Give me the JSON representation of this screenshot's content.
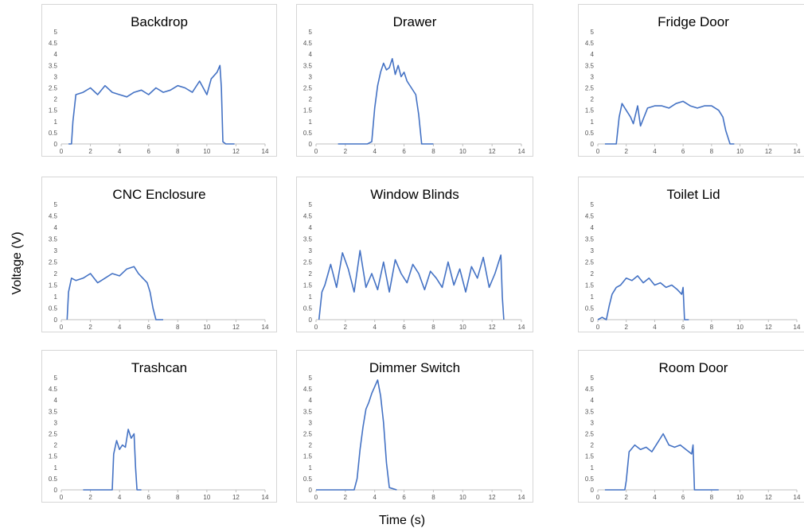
{
  "figure": {
    "ylabel": "Voltage (V)",
    "xlabel": "Time (s)",
    "line_color": "#4472C4"
  },
  "chart_data": [
    {
      "type": "line",
      "title": "Backdrop",
      "xlim": [
        0,
        14
      ],
      "ylim": [
        0,
        5
      ],
      "xticks": [
        0,
        2,
        4,
        6,
        8,
        10,
        12,
        14
      ],
      "yticks": [
        0,
        0.5,
        1,
        1.5,
        2,
        2.5,
        3,
        3.5,
        4,
        4.5,
        5
      ],
      "grid": false,
      "series": [
        {
          "x": [
            0.5,
            0.7,
            0.8,
            1.0,
            1.5,
            2,
            2.5,
            3,
            3.5,
            4,
            4.5,
            5,
            5.5,
            6,
            6.5,
            7,
            7.5,
            8,
            8.5,
            9,
            9.5,
            10,
            10.3,
            10.7,
            10.9,
            11.0,
            11.1,
            11.3,
            11.6,
            11.9
          ],
          "values": [
            0,
            0,
            1.0,
            2.2,
            2.3,
            2.5,
            2.2,
            2.6,
            2.3,
            2.2,
            2.1,
            2.3,
            2.4,
            2.2,
            2.5,
            2.3,
            2.4,
            2.6,
            2.5,
            2.3,
            2.8,
            2.2,
            2.9,
            3.2,
            3.5,
            2.5,
            0.1,
            0,
            0,
            0
          ]
        }
      ]
    },
    {
      "type": "line",
      "title": "Drawer",
      "xlim": [
        0,
        14
      ],
      "ylim": [
        0,
        5
      ],
      "xticks": [
        0,
        2,
        4,
        6,
        8,
        10,
        12,
        14
      ],
      "yticks": [
        0,
        0.5,
        1,
        1.5,
        2,
        2.5,
        3,
        3.5,
        4,
        4.5,
        5
      ],
      "grid": false,
      "series": [
        {
          "x": [
            1.5,
            2.0,
            2.8,
            3.5,
            3.8,
            4.0,
            4.2,
            4.4,
            4.6,
            4.8,
            5.0,
            5.2,
            5.4,
            5.6,
            5.8,
            6.0,
            6.2,
            6.5,
            6.8,
            7.0,
            7.2,
            7.5,
            8.0
          ],
          "values": [
            0,
            0,
            0,
            0,
            0.1,
            1.6,
            2.6,
            3.2,
            3.6,
            3.3,
            3.4,
            3.8,
            3.1,
            3.5,
            3.0,
            3.2,
            2.8,
            2.5,
            2.2,
            1.3,
            0,
            0,
            0
          ]
        }
      ]
    },
    {
      "type": "line",
      "title": "Fridge Door",
      "xlim": [
        0,
        14
      ],
      "ylim": [
        0,
        5
      ],
      "xticks": [
        0,
        2,
        4,
        6,
        8,
        10,
        12,
        14
      ],
      "yticks": [
        0,
        0.5,
        1,
        1.5,
        2,
        2.5,
        3,
        3.5,
        4,
        4.5,
        5
      ],
      "grid": false,
      "series": [
        {
          "x": [
            0.5,
            1.0,
            1.3,
            1.5,
            1.7,
            2.0,
            2.3,
            2.5,
            2.8,
            3.0,
            3.5,
            4.0,
            4.5,
            5.0,
            5.5,
            6.0,
            6.5,
            7.0,
            7.5,
            8.0,
            8.5,
            8.8,
            9.0,
            9.3,
            9.6
          ],
          "values": [
            0,
            0,
            0,
            1.2,
            1.8,
            1.5,
            1.2,
            0.9,
            1.7,
            0.8,
            1.6,
            1.7,
            1.7,
            1.6,
            1.8,
            1.9,
            1.7,
            1.6,
            1.7,
            1.7,
            1.5,
            1.2,
            0.6,
            0,
            0
          ]
        }
      ]
    },
    {
      "type": "line",
      "title": "CNC Enclosure",
      "xlim": [
        0,
        14
      ],
      "ylim": [
        0,
        5
      ],
      "xticks": [
        0,
        2,
        4,
        6,
        8,
        10,
        12,
        14
      ],
      "yticks": [
        0,
        0.5,
        1,
        1.5,
        2,
        2.5,
        3,
        3.5,
        4,
        4.5,
        5
      ],
      "grid": false,
      "series": [
        {
          "x": [
            0.4,
            0.5,
            0.7,
            1.0,
            1.5,
            2.0,
            2.5,
            3.0,
            3.5,
            4.0,
            4.5,
            5.0,
            5.3,
            5.6,
            5.9,
            6.1,
            6.3,
            6.5,
            7.0
          ],
          "values": [
            0,
            1.2,
            1.8,
            1.7,
            1.8,
            2.0,
            1.6,
            1.8,
            2.0,
            1.9,
            2.2,
            2.3,
            2.0,
            1.8,
            1.6,
            1.2,
            0.5,
            0,
            0
          ]
        }
      ]
    },
    {
      "type": "line",
      "title": "Window Blinds",
      "xlim": [
        0,
        14
      ],
      "ylim": [
        0,
        5
      ],
      "xticks": [
        0,
        2,
        4,
        6,
        8,
        10,
        12,
        14
      ],
      "yticks": [
        0,
        0.5,
        1,
        1.5,
        2,
        2.5,
        3,
        3.5,
        4,
        4.5,
        5
      ],
      "grid": false,
      "series": [
        {
          "x": [
            0.2,
            0.4,
            0.6,
            1.0,
            1.4,
            1.8,
            2.2,
            2.6,
            3.0,
            3.4,
            3.8,
            4.2,
            4.6,
            5.0,
            5.4,
            5.8,
            6.2,
            6.6,
            7.0,
            7.4,
            7.8,
            8.2,
            8.6,
            9.0,
            9.4,
            9.8,
            10.2,
            10.6,
            11.0,
            11.4,
            11.8,
            12.2,
            12.6,
            12.7,
            12.8
          ],
          "values": [
            0,
            1.2,
            1.5,
            2.4,
            1.4,
            2.9,
            2.2,
            1.2,
            3.0,
            1.4,
            2.0,
            1.3,
            2.5,
            1.2,
            2.6,
            2.0,
            1.6,
            2.4,
            2.0,
            1.3,
            2.1,
            1.8,
            1.4,
            2.5,
            1.5,
            2.2,
            1.2,
            2.3,
            1.8,
            2.7,
            1.4,
            2.0,
            2.8,
            1.0,
            0
          ]
        }
      ]
    },
    {
      "type": "line",
      "title": "Toilet Lid",
      "xlim": [
        0,
        14
      ],
      "ylim": [
        0,
        5
      ],
      "xticks": [
        0,
        2,
        4,
        6,
        8,
        10,
        12,
        14
      ],
      "yticks": [
        0,
        0.5,
        1,
        1.5,
        2,
        2.5,
        3,
        3.5,
        4,
        4.5,
        5
      ],
      "grid": false,
      "series": [
        {
          "x": [
            0,
            0.3,
            0.6,
            0.8,
            1.0,
            1.3,
            1.6,
            2.0,
            2.4,
            2.8,
            3.2,
            3.6,
            4.0,
            4.4,
            4.8,
            5.2,
            5.6,
            5.9,
            6.0,
            6.1,
            6.4
          ],
          "values": [
            0,
            0.1,
            0,
            0.6,
            1.1,
            1.4,
            1.5,
            1.8,
            1.7,
            1.9,
            1.6,
            1.8,
            1.5,
            1.6,
            1.4,
            1.5,
            1.3,
            1.1,
            1.4,
            0,
            0
          ]
        }
      ]
    },
    {
      "type": "line",
      "title": "Trashcan",
      "xlim": [
        0,
        14
      ],
      "ylim": [
        0,
        5
      ],
      "xticks": [
        0,
        2,
        4,
        6,
        8,
        10,
        12,
        14
      ],
      "yticks": [
        0,
        0.5,
        1,
        1.5,
        2,
        2.5,
        3,
        3.5,
        4,
        4.5,
        5
      ],
      "grid": false,
      "series": [
        {
          "x": [
            1.5,
            2.0,
            2.5,
            3.0,
            3.5,
            3.6,
            3.8,
            4.0,
            4.2,
            4.4,
            4.6,
            4.8,
            5.0,
            5.1,
            5.2,
            5.5
          ],
          "values": [
            0,
            0,
            0,
            0,
            0,
            1.6,
            2.2,
            1.8,
            2.0,
            1.9,
            2.7,
            2.3,
            2.5,
            1.0,
            0,
            0
          ]
        }
      ]
    },
    {
      "type": "line",
      "title": "Dimmer Switch",
      "xlim": [
        0,
        14
      ],
      "ylim": [
        0,
        5
      ],
      "xticks": [
        0,
        2,
        4,
        6,
        8,
        10,
        12,
        14
      ],
      "yticks": [
        0,
        0.5,
        1,
        1.5,
        2,
        2.5,
        3,
        3.5,
        4,
        4.5,
        5
      ],
      "grid": false,
      "series": [
        {
          "x": [
            0,
            1.0,
            2.0,
            2.6,
            2.8,
            3.0,
            3.2,
            3.4,
            3.6,
            3.8,
            4.0,
            4.2,
            4.4,
            4.6,
            4.8,
            5.0,
            5.5
          ],
          "values": [
            0,
            0,
            0,
            0,
            0.5,
            1.8,
            2.8,
            3.6,
            3.9,
            4.3,
            4.6,
            4.9,
            4.2,
            3.0,
            1.2,
            0.1,
            0
          ]
        }
      ]
    },
    {
      "type": "line",
      "title": "Room Door",
      "xlim": [
        0,
        14
      ],
      "ylim": [
        0,
        5
      ],
      "xticks": [
        0,
        2,
        4,
        6,
        8,
        10,
        12,
        14
      ],
      "yticks": [
        0,
        0.5,
        1,
        1.5,
        2,
        2.5,
        3,
        3.5,
        4,
        4.5,
        5
      ],
      "grid": false,
      "series": [
        {
          "x": [
            0.5,
            1.0,
            1.5,
            1.9,
            2.0,
            2.2,
            2.6,
            3.0,
            3.4,
            3.8,
            4.2,
            4.6,
            5.0,
            5.4,
            5.8,
            6.2,
            6.6,
            6.7,
            6.8,
            7.5,
            8.5
          ],
          "values": [
            0,
            0,
            0,
            0,
            0.4,
            1.7,
            2.0,
            1.8,
            1.9,
            1.7,
            2.1,
            2.5,
            2.0,
            1.9,
            2.0,
            1.8,
            1.6,
            2.0,
            0,
            0,
            0
          ]
        }
      ]
    }
  ]
}
